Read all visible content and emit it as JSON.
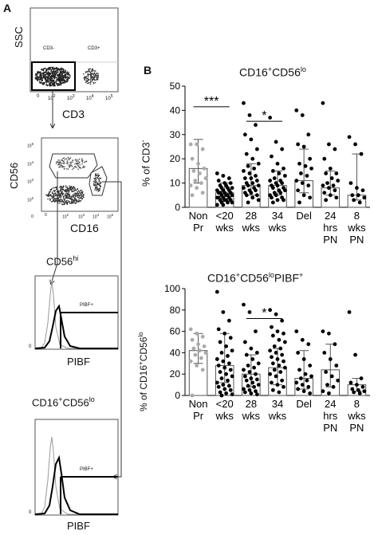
{
  "panelA": {
    "letter": "A",
    "p1": {
      "ylabel": "SSC",
      "xlabel": "CD3",
      "gate_left": "CD3-",
      "gate_right": "CD3+",
      "xticks": [
        "0",
        "10",
        "10",
        "10",
        "10",
        "10"
      ],
      "xexps": [
        "",
        "2",
        "3",
        "4",
        "5",
        ""
      ]
    },
    "p2": {
      "ylabel": "CD56",
      "xlabel": "CD16",
      "yticks": [
        "10",
        "10",
        "10",
        "10",
        "0"
      ],
      "yexps": [
        "5",
        "4",
        "3",
        "2",
        ""
      ],
      "xticks": [
        "0",
        "10",
        "10",
        "10",
        "10"
      ],
      "xexps": [
        "",
        "2",
        "3",
        "4",
        "5"
      ]
    },
    "p3": {
      "title": "CD56",
      "title_sup": "hi",
      "gate": "PIBF+",
      "xlabel": "PIBF",
      "ytick": "0"
    },
    "p4": {
      "title_a": "CD16",
      "title_sup1": "+",
      "title_b": "CD56",
      "title_sup2": "lo",
      "gate": "PIBF+",
      "xlabel": "PIBF",
      "ytick": "0"
    }
  },
  "panelB": {
    "letter": "B",
    "chart_data": [
      {
        "type": "scatter",
        "title": "CD16+CD56lo",
        "title_parts": [
          "CD16",
          "+",
          "CD56",
          "lo"
        ],
        "ylabel": "% of CD3-",
        "ylabel_parts": [
          "% of CD3",
          "-"
        ],
        "ylim": [
          0,
          50
        ],
        "yticks": [
          "0",
          "10",
          "20",
          "30",
          "40",
          "50"
        ],
        "categories": [
          "Non Pr",
          "<20 wks",
          "28 wks",
          "34 wks",
          "Del",
          "24 hrs PN",
          "8 wks PN"
        ],
        "cat_lines": [
          [
            "Non",
            "Pr"
          ],
          [
            "<20",
            "wks"
          ],
          [
            "28",
            "wks"
          ],
          [
            "34",
            "wks"
          ],
          [
            "Del",
            ""
          ],
          [
            "24",
            "hrs",
            "PN"
          ],
          [
            "8",
            "wks",
            "PN"
          ]
        ],
        "bar_median": [
          16,
          6,
          9,
          9,
          11,
          8,
          5
        ],
        "err_low": [
          10,
          3,
          5,
          5,
          6,
          5,
          3
        ],
        "err_high": [
          28,
          10,
          18,
          15,
          24,
          15,
          22
        ],
        "annotations": [
          {
            "text": "***",
            "from": 0,
            "to": 1,
            "y": 41.5
          },
          {
            "text": "*",
            "from": 2,
            "to": 3,
            "y": 35.5
          }
        ],
        "points": [
          [
            26,
            26,
            24,
            20,
            18,
            16,
            15,
            14,
            12,
            11,
            10,
            9,
            8,
            6,
            5
          ],
          [
            14,
            13,
            12,
            11,
            10,
            10,
            9,
            9,
            8,
            8,
            8,
            7,
            7,
            7,
            6,
            6,
            6,
            6,
            5,
            5,
            5,
            5,
            4,
            4,
            4,
            4,
            3,
            3,
            3,
            3,
            2,
            2,
            2,
            1,
            1
          ],
          [
            43,
            38,
            34,
            30,
            28,
            24,
            22,
            20,
            18,
            17,
            16,
            15,
            14,
            13,
            12,
            12,
            11,
            10,
            10,
            9,
            9,
            8,
            8,
            7,
            7,
            6,
            6,
            5,
            5,
            4,
            3,
            2
          ],
          [
            37,
            27,
            24,
            21,
            18,
            16,
            15,
            14,
            13,
            12,
            11,
            11,
            10,
            10,
            9,
            9,
            8,
            8,
            7,
            7,
            6,
            6,
            5,
            5,
            4,
            4,
            3,
            3,
            2
          ],
          [
            40,
            38,
            30,
            26,
            25,
            20,
            18,
            17,
            16,
            14,
            13,
            11,
            10,
            9,
            7,
            5,
            4,
            2
          ],
          [
            43,
            26,
            24,
            20,
            16,
            14,
            14,
            12,
            11,
            10,
            9,
            9,
            8,
            7,
            6,
            5,
            4,
            3
          ],
          [
            29,
            26,
            22,
            10,
            8,
            7,
            5,
            5,
            4,
            3,
            2
          ]
        ],
        "grey_series": 0
      },
      {
        "type": "scatter",
        "title": "CD16+CD56loPIBF+",
        "title_parts": [
          "CD16",
          "+",
          "CD56",
          "lo",
          "PIBF",
          "+"
        ],
        "ylabel": "% of CD16+CD56lo",
        "ylabel_parts": [
          "% of CD16",
          "+",
          "CD56",
          "lo"
        ],
        "ylim": [
          0,
          100
        ],
        "yticks": [
          "0",
          "20",
          "40",
          "60",
          "80",
          "100"
        ],
        "categories": [
          "Non Pr",
          "<20 wks",
          "28 wks",
          "34 wks",
          "Del",
          "24 hrs PN",
          "8 wks PN"
        ],
        "cat_lines": [
          [
            "Non",
            "Pr"
          ],
          [
            "<20",
            "wks"
          ],
          [
            "28",
            "wks"
          ],
          [
            "34",
            "wks"
          ],
          [
            "Del",
            ""
          ],
          [
            "24",
            "hrs",
            "PN"
          ],
          [
            "8",
            "wks",
            "PN"
          ]
        ],
        "bar_median": [
          42,
          28,
          20,
          26,
          16,
          24,
          10
        ],
        "err_low": [
          30,
          12,
          8,
          10,
          6,
          8,
          4
        ],
        "err_high": [
          58,
          58,
          38,
          44,
          42,
          48,
          16
        ],
        "annotations": [
          {
            "text": "*",
            "from": 2,
            "to": 3,
            "y": 72
          }
        ],
        "points": [
          [
            62,
            58,
            55,
            52,
            48,
            46,
            44,
            42,
            40,
            38,
            35,
            32,
            28,
            24,
            0
          ],
          [
            97,
            78,
            70,
            62,
            58,
            54,
            50,
            46,
            42,
            40,
            37,
            34,
            32,
            30,
            28,
            26,
            24,
            22,
            20,
            18,
            16,
            14,
            12,
            10,
            9,
            8,
            6,
            5,
            3,
            2,
            1,
            0
          ],
          [
            85,
            78,
            60,
            50,
            44,
            40,
            38,
            34,
            30,
            28,
            26,
            24,
            22,
            20,
            18,
            16,
            15,
            14,
            12,
            10,
            9,
            8,
            6,
            5,
            4,
            3,
            2,
            1
          ],
          [
            80,
            76,
            70,
            64,
            60,
            58,
            56,
            52,
            50,
            46,
            44,
            42,
            40,
            38,
            36,
            34,
            32,
            30,
            28,
            26,
            24,
            22,
            20,
            18,
            14,
            12,
            10,
            8,
            5,
            3
          ],
          [
            60,
            52,
            48,
            40,
            34,
            28,
            24,
            20,
            18,
            16,
            14,
            12,
            10,
            8,
            6,
            4,
            2
          ],
          [
            60,
            58,
            48,
            40,
            34,
            28,
            22,
            18,
            14,
            10,
            8,
            4,
            2
          ],
          [
            78,
            38,
            16,
            12,
            10,
            8,
            6,
            5,
            4,
            3,
            2
          ]
        ],
        "grey_series": 0
      }
    ]
  }
}
